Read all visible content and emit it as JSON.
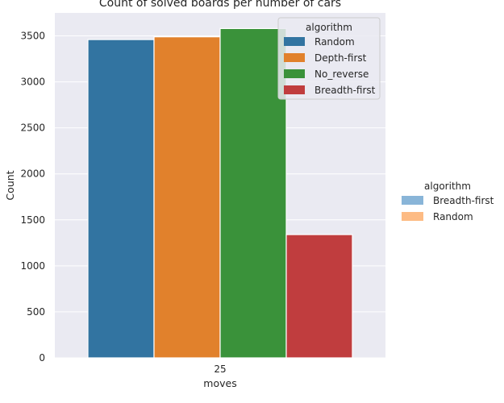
{
  "chart_data": {
    "type": "bar",
    "title": "Count of solved boards per number of cars",
    "xlabel": "moves",
    "ylabel": "Count",
    "categories": [
      "25"
    ],
    "ylim": [
      0,
      3750
    ],
    "yticks": [
      0,
      500,
      1000,
      1500,
      2000,
      2500,
      3000,
      3500
    ],
    "grid": true,
    "series": [
      {
        "name": "Random",
        "color": "#3274a1",
        "values": [
          3460
        ]
      },
      {
        "name": "Depth-first",
        "color": "#e1812c",
        "values": [
          3490
        ]
      },
      {
        "name": "No_reverse",
        "color": "#3a923a",
        "values": [
          3580
        ]
      },
      {
        "name": "Breadth-first",
        "color": "#c03d3e",
        "values": [
          1340
        ]
      }
    ],
    "legend": {
      "title": "algorithm",
      "placement": "top-right",
      "items": [
        "Random",
        "Depth-first",
        "No_reverse",
        "Breadth-first"
      ]
    },
    "outer_legend": {
      "title": "algorithm",
      "placement": "right",
      "items": [
        {
          "name": "Breadth-first",
          "color": "#89b5d8"
        },
        {
          "name": "Random",
          "color": "#fdbb84"
        }
      ]
    },
    "colors": {
      "background": "#eaeaf2",
      "grid": "#ffffff",
      "text": "#262626"
    }
  }
}
